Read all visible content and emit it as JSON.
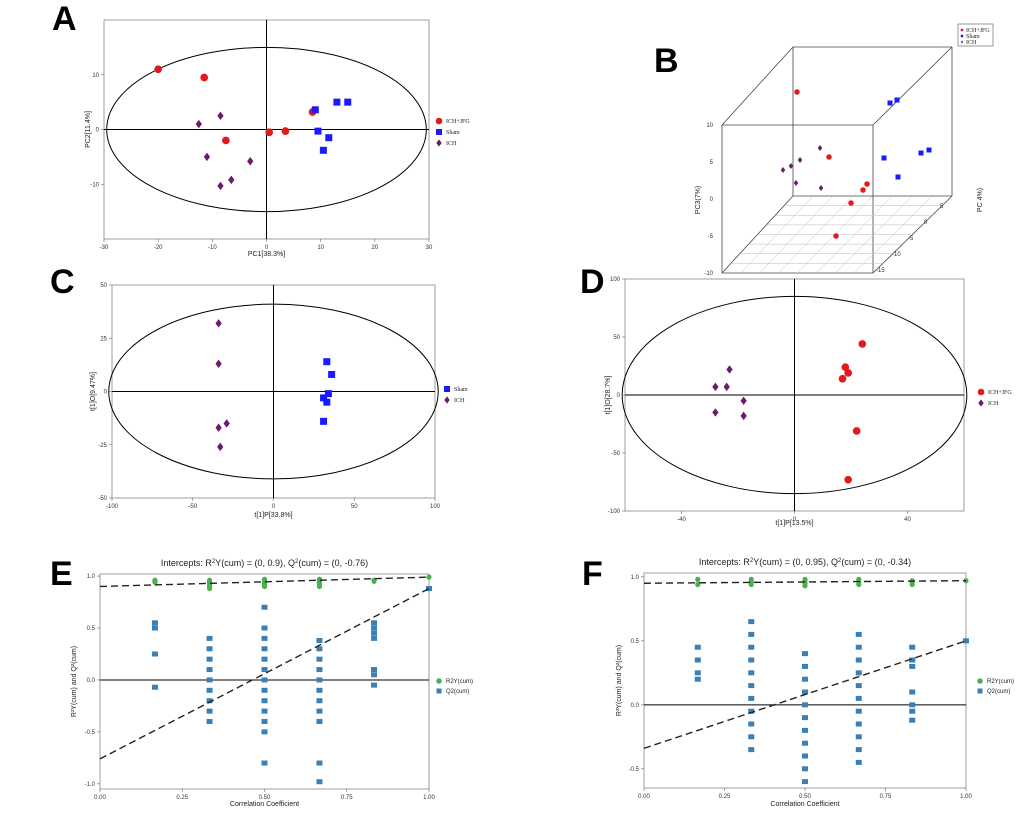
{
  "colors": {
    "red": "#e31a1c",
    "blue": "#1a1aff",
    "purple": "#6a1b6e",
    "green": "#4caf50",
    "steel": "#3a7fb5"
  },
  "chart_data": [
    {
      "id": "A",
      "letter": "A",
      "type": "scatter",
      "xlabel": "PC1[38.3%]",
      "ylabel": "PC2[11.4%]",
      "xlim": [
        -30,
        30
      ],
      "ylim": [
        -20,
        20
      ],
      "xticks": [
        -30,
        -20,
        -10,
        0,
        10,
        20,
        30
      ],
      "yticks": [
        -10,
        0,
        10
      ],
      "ellipse": {
        "rx": 29.5,
        "ry": 15
      },
      "legend": [
        {
          "label": "ICH+JFG",
          "color": "#e31a1c",
          "marker": "circle"
        },
        {
          "label": "Sham",
          "color": "#1a1aff",
          "marker": "square"
        },
        {
          "label": "ICH",
          "color": "#6a1b6e",
          "marker": "diamond"
        }
      ],
      "series": [
        {
          "name": "ICH+JFG",
          "color": "#e31a1c",
          "marker": "circle",
          "points": [
            [
              -20,
              11
            ],
            [
              -11.5,
              9.5
            ],
            [
              -7.5,
              -2
            ],
            [
              0.5,
              -0.5
            ],
            [
              3.5,
              -0.3
            ],
            [
              8.5,
              3.2
            ]
          ]
        },
        {
          "name": "Sham",
          "color": "#1a1aff",
          "marker": "square",
          "points": [
            [
              9,
              3.6
            ],
            [
              13,
              5
            ],
            [
              15,
              5
            ],
            [
              9.5,
              -0.3
            ],
            [
              11.5,
              -1.5
            ],
            [
              10.5,
              -3.8
            ]
          ]
        },
        {
          "name": "ICH",
          "color": "#6a1b6e",
          "marker": "diamond",
          "points": [
            [
              -12.5,
              1
            ],
            [
              -8.5,
              2.5
            ],
            [
              -11,
              -5
            ],
            [
              -3,
              -5.8
            ],
            [
              -6.5,
              -9.2
            ],
            [
              -8.5,
              -10.3
            ]
          ]
        }
      ]
    },
    {
      "id": "B",
      "letter": "B",
      "type": "scatter3d",
      "ylabel": "PC3(7%)",
      "zlabel": "PC 4%)",
      "yticks": [
        10,
        5,
        0,
        -5,
        -10
      ],
      "zticks": [
        5,
        0,
        -5,
        -10,
        -15
      ],
      "legend": [
        {
          "label": "ICH+JFG",
          "color": "#e31a1c",
          "marker": "circle"
        },
        {
          "label": "Sham",
          "color": "#1a1aff",
          "marker": "square"
        },
        {
          "label": "ICH",
          "color": "#6a1b6e",
          "marker": "diamond"
        }
      ]
    },
    {
      "id": "C",
      "letter": "C",
      "type": "scatter",
      "xlabel": "t[1]P[33.8%]",
      "ylabel": "t[1]O[9.47%]",
      "xlim": [
        -100,
        100
      ],
      "ylim": [
        -50,
        50
      ],
      "xticks": [
        -100,
        -50,
        0,
        50,
        100
      ],
      "yticks": [
        -50,
        -25,
        0,
        25,
        50
      ],
      "ellipse": {
        "rx": 102,
        "ry": 41
      },
      "legend": [
        {
          "label": "Sham",
          "color": "#1a1aff",
          "marker": "square"
        },
        {
          "label": "ICH",
          "color": "#6a1b6e",
          "marker": "diamond"
        }
      ],
      "series": [
        {
          "name": "Sham",
          "color": "#1a1aff",
          "marker": "square",
          "points": [
            [
              33,
              14
            ],
            [
              36,
              8
            ],
            [
              34,
              -1
            ],
            [
              31,
              -3
            ],
            [
              33,
              -5
            ],
            [
              31,
              -14
            ]
          ]
        },
        {
          "name": "ICH",
          "color": "#6a1b6e",
          "marker": "diamond",
          "points": [
            [
              -34,
              32
            ],
            [
              -34,
              13
            ],
            [
              -34,
              -17
            ],
            [
              -29,
              -15
            ],
            [
              -33,
              -26
            ]
          ]
        }
      ]
    },
    {
      "id": "D",
      "letter": "D",
      "type": "scatter",
      "xlabel": "t[1]P[13.5%]",
      "ylabel": "t[1]O[28.7%]",
      "xlim": [
        -60,
        60
      ],
      "ylim": [
        -100,
        100
      ],
      "xticks": [
        -40,
        0,
        40
      ],
      "yticks": [
        -100,
        -50,
        0,
        50,
        100
      ],
      "ellipse": {
        "rx": 61,
        "ry": 85
      },
      "legend": [
        {
          "label": "ICH+JFG",
          "color": "#e31a1c",
          "marker": "circle"
        },
        {
          "label": "ICH",
          "color": "#6a1b6e",
          "marker": "diamond"
        }
      ],
      "series": [
        {
          "name": "ICH+JFG",
          "color": "#e31a1c",
          "marker": "circle",
          "points": [
            [
              24,
              44
            ],
            [
              18,
              24
            ],
            [
              19,
              19
            ],
            [
              17,
              14
            ],
            [
              22,
              -31
            ],
            [
              19,
              -73
            ]
          ]
        },
        {
          "name": "ICH",
          "color": "#6a1b6e",
          "marker": "diamond",
          "points": [
            [
              -23,
              22
            ],
            [
              -28,
              7
            ],
            [
              -24,
              7
            ],
            [
              -18,
              -5
            ],
            [
              -28,
              -15
            ],
            [
              -18,
              -18
            ]
          ]
        }
      ]
    },
    {
      "id": "E",
      "letter": "E",
      "type": "permutation",
      "title_main": "Intercepts: R",
      "title_mid": "Y(cum) = (0, 0.9), Q",
      "title_end": "(cum) = (0, -0.76)",
      "xlabel": "Correlation Coefficient",
      "ylabel": "R²Y(cum) and Q²(cum)",
      "xlim": [
        0,
        1
      ],
      "ylim": [
        -1.05,
        1.02
      ],
      "xticks": [
        0,
        0.25,
        0.5,
        0.75,
        1
      ],
      "xtick_labels": [
        "0.00",
        "0.25",
        "0.50",
        "0.75",
        "1.00"
      ],
      "yticks": [
        -1,
        -0.5,
        0,
        0.5,
        1
      ],
      "ytick_labels": [
        "-1.0",
        "-0.5",
        "0.0",
        "0.5",
        "1.0"
      ],
      "r2_intercept": 0.9,
      "q2_intercept": -0.76,
      "legend": [
        {
          "label": "R2Y(cum)",
          "color": "#4caf50",
          "marker": "circle"
        },
        {
          "label": "Q2(cum)",
          "color": "#3a7fb5",
          "marker": "square"
        }
      ],
      "r2y": [
        {
          "x": 0.167,
          "y": [
            0.94,
            0.96
          ]
        },
        {
          "x": 0.333,
          "y": [
            0.88,
            0.9,
            0.92,
            0.94,
            0.96
          ]
        },
        {
          "x": 0.5,
          "y": [
            0.9,
            0.92,
            0.94,
            0.96,
            0.97
          ]
        },
        {
          "x": 0.667,
          "y": [
            0.9,
            0.92,
            0.94,
            0.96,
            0.97
          ]
        },
        {
          "x": 0.833,
          "y": [
            0.95,
            0.96
          ]
        },
        {
          "x": 1.0,
          "y": [
            0.99
          ]
        }
      ],
      "q2": [
        {
          "x": 0.167,
          "y": [
            0.55,
            0.5,
            0.25,
            -0.07
          ]
        },
        {
          "x": 0.333,
          "y": [
            0.4,
            0.3,
            0.2,
            0.1,
            0.0,
            -0.1,
            -0.2,
            -0.3,
            -0.4
          ]
        },
        {
          "x": 0.5,
          "y": [
            0.7,
            0.5,
            0.4,
            0.3,
            0.2,
            0.1,
            0.0,
            -0.1,
            -0.2,
            -0.3,
            -0.4,
            -0.5,
            -0.8
          ]
        },
        {
          "x": 0.667,
          "y": [
            0.38,
            0.3,
            0.2,
            0.1,
            0.0,
            -0.1,
            -0.2,
            -0.3,
            -0.4,
            -0.8,
            -0.98
          ]
        },
        {
          "x": 0.833,
          "y": [
            0.55,
            0.5,
            0.45,
            0.4,
            0.1,
            0.05,
            -0.05
          ]
        },
        {
          "x": 1.0,
          "y": [
            0.88
          ]
        }
      ]
    },
    {
      "id": "F",
      "letter": "F",
      "type": "permutation",
      "title_main": "Intercepts: R",
      "title_mid": "Y(cum) = (0, 0.95), Q",
      "title_end": "(cum) = (0, -0.34)",
      "xlabel": "Correlation Coefficient",
      "ylabel": "R²Y(cum) and Q²(cum)",
      "xlim": [
        0,
        1
      ],
      "ylim": [
        -0.65,
        1.03
      ],
      "xticks": [
        0,
        0.25,
        0.5,
        0.75,
        1
      ],
      "xtick_labels": [
        "0.00",
        "0.25",
        "0.50",
        "0.75",
        "1.00"
      ],
      "yticks": [
        -0.5,
        0,
        0.5,
        1
      ],
      "ytick_labels": [
        "-0.5",
        "0.0",
        "0.5",
        "1.0"
      ],
      "r2_intercept": 0.95,
      "q2_intercept": -0.34,
      "legend": [
        {
          "label": "R2Y(cum)",
          "color": "#4caf50",
          "marker": "circle"
        },
        {
          "label": "Q2(cum)",
          "color": "#3a7fb5",
          "marker": "square"
        }
      ],
      "r2y": [
        {
          "x": 0.167,
          "y": [
            0.94,
            0.98
          ]
        },
        {
          "x": 0.333,
          "y": [
            0.94,
            0.96,
            0.98
          ]
        },
        {
          "x": 0.5,
          "y": [
            0.93,
            0.95,
            0.97,
            0.98
          ]
        },
        {
          "x": 0.667,
          "y": [
            0.94,
            0.96,
            0.98
          ]
        },
        {
          "x": 0.833,
          "y": [
            0.94,
            0.96,
            0.97
          ]
        },
        {
          "x": 1.0,
          "y": [
            0.97
          ]
        }
      ],
      "q2": [
        {
          "x": 0.167,
          "y": [
            0.45,
            0.35,
            0.25,
            0.2
          ]
        },
        {
          "x": 0.333,
          "y": [
            0.65,
            0.55,
            0.45,
            0.35,
            0.25,
            0.15,
            0.05,
            -0.05,
            -0.15,
            -0.25,
            -0.35
          ]
        },
        {
          "x": 0.5,
          "y": [
            0.4,
            0.3,
            0.2,
            0.1,
            0.0,
            -0.1,
            -0.2,
            -0.3,
            -0.4,
            -0.5,
            -0.6
          ]
        },
        {
          "x": 0.667,
          "y": [
            0.55,
            0.45,
            0.35,
            0.25,
            0.15,
            0.05,
            -0.05,
            -0.15,
            -0.25,
            -0.35,
            -0.45
          ]
        },
        {
          "x": 0.833,
          "y": [
            0.45,
            0.35,
            0.3,
            0.1,
            0.0,
            -0.05,
            -0.12
          ]
        },
        {
          "x": 1.0,
          "y": [
            0.5
          ]
        }
      ]
    }
  ]
}
